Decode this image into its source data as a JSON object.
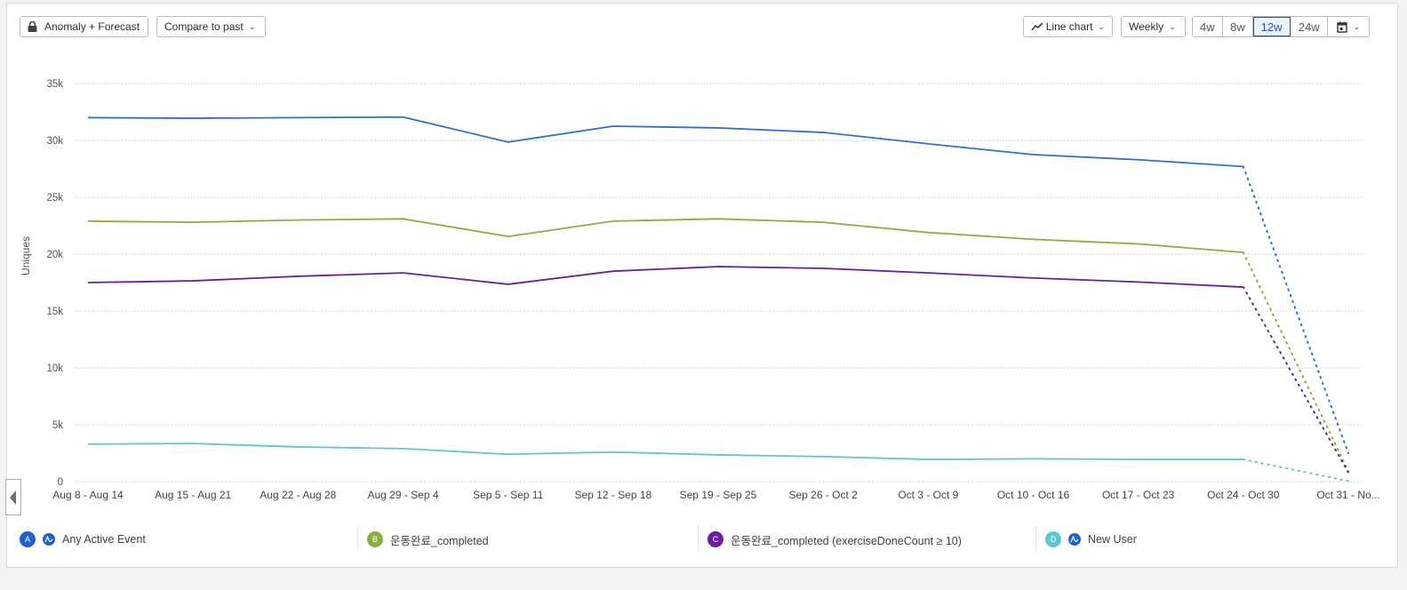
{
  "toolbar": {
    "anomaly_label": "Anomaly + Forecast",
    "compare_label": "Compare to past",
    "chart_type_label": "Line chart",
    "interval_label": "Weekly",
    "ranges": [
      "4w",
      "8w",
      "12w",
      "24w"
    ],
    "active_range": "12w"
  },
  "chart_data": {
    "type": "line",
    "title": "",
    "xlabel": "",
    "ylabel": "Uniques",
    "ylim": [
      0,
      35000
    ],
    "yticks": [
      0,
      5000,
      10000,
      15000,
      20000,
      25000,
      30000,
      35000
    ],
    "ytick_labels": [
      "0",
      "5k",
      "10k",
      "15k",
      "20k",
      "25k",
      "30k",
      "35k"
    ],
    "grid": true,
    "categories": [
      "Aug 8 - Aug 14",
      "Aug 15 - Aug 21",
      "Aug 22 - Aug 28",
      "Aug 29 - Sep 4",
      "Sep 5 - Sep 11",
      "Sep 12 - Sep 18",
      "Sep 19 - Sep 25",
      "Sep 26 - Oct 2",
      "Oct 3 - Oct 9",
      "Oct 10 - Oct 16",
      "Oct 17 - Oct 23",
      "Oct 24 - Oct 30",
      "Oct 31 - No..."
    ],
    "forecast_from_index": 11,
    "legend_position": "bottom",
    "series": [
      {
        "letter": "A",
        "name": "Any Active Event",
        "color": "#2f6fcf",
        "amplitude_icon": true,
        "values": [
          32000,
          31950,
          32000,
          32050,
          29850,
          31250,
          31100,
          30700,
          29700,
          28750,
          28300,
          27700,
          2500
        ]
      },
      {
        "letter": "B",
        "name": "운동완료_completed",
        "color": "#88b03a",
        "amplitude_icon": false,
        "values": [
          22900,
          22800,
          23000,
          23100,
          21550,
          22900,
          23100,
          22800,
          21900,
          21300,
          20900,
          20150,
          900
        ]
      },
      {
        "letter": "C",
        "name": "운동완료_completed (exerciseDoneCount ≥ 10)",
        "color": "#6a1fa0",
        "amplitude_icon": false,
        "values": [
          17500,
          17650,
          18050,
          18350,
          17350,
          18500,
          18900,
          18750,
          18350,
          17900,
          17550,
          17100,
          800
        ]
      },
      {
        "letter": "D",
        "name": "New User",
        "color": "#5ec6cc",
        "amplitude_icon": true,
        "values": [
          3300,
          3350,
          3050,
          2900,
          2400,
          2600,
          2350,
          2200,
          1950,
          2000,
          1950,
          1950,
          50
        ]
      }
    ]
  }
}
